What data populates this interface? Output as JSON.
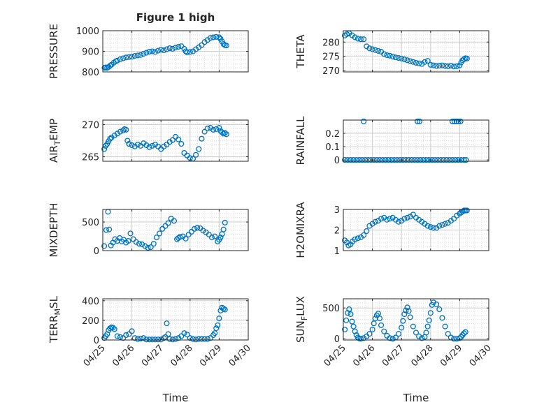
{
  "figure": {
    "title": "Figure 1 high",
    "x_axis_label": "Time",
    "x_tick_labels": [
      "04/25",
      "04/26",
      "04/27",
      "04/28",
      "04/29",
      "04/30"
    ]
  },
  "colors": {
    "marker": "#0072BD",
    "grid": "#dcdcdc",
    "axes": "#262626",
    "background": "#ffffff"
  },
  "chart_data": [
    {
      "type": "scatter",
      "ylabel": "PRESSURE",
      "yticks": [
        "800",
        "900",
        "1000"
      ],
      "ylim": [
        800,
        1000
      ],
      "xlim": [
        0,
        5
      ],
      "grid": true,
      "marker": "open-circle",
      "x": [
        0.06,
        0.1,
        0.15,
        0.2,
        0.25,
        0.3,
        0.38,
        0.45,
        0.5,
        0.6,
        0.7,
        0.8,
        0.9,
        1.0,
        1.1,
        1.2,
        1.3,
        1.4,
        1.5,
        1.6,
        1.7,
        1.8,
        1.9,
        2.0,
        2.1,
        2.2,
        2.3,
        2.4,
        2.5,
        2.6,
        2.7,
        2.8,
        2.85,
        2.9,
        3.0,
        3.1,
        3.2,
        3.3,
        3.4,
        3.5,
        3.6,
        3.7,
        3.8,
        3.9,
        4.0,
        4.05,
        4.1,
        4.15,
        4.2,
        4.25
      ],
      "y": [
        820,
        822,
        820,
        824,
        830,
        835,
        845,
        852,
        855,
        862,
        866,
        870,
        872,
        874,
        878,
        880,
        882,
        888,
        893,
        898,
        900,
        897,
        903,
        908,
        905,
        910,
        915,
        912,
        918,
        922,
        925,
        912,
        900,
        895,
        897,
        900,
        910,
        920,
        930,
        945,
        955,
        965,
        968,
        970,
        968,
        960,
        948,
        935,
        930,
        928
      ]
    },
    {
      "type": "scatter",
      "ylabel": "THETA",
      "yticks": [
        "270",
        "275",
        "280"
      ],
      "ylim": [
        269.5,
        284
      ],
      "xlim": [
        0,
        5
      ],
      "grid": true,
      "marker": "open-circle",
      "x": [
        0.05,
        0.12,
        0.2,
        0.3,
        0.4,
        0.5,
        0.6,
        0.7,
        0.8,
        0.9,
        1.0,
        1.1,
        1.2,
        1.3,
        1.4,
        1.5,
        1.6,
        1.7,
        1.8,
        1.9,
        2.0,
        2.1,
        2.2,
        2.3,
        2.4,
        2.5,
        2.6,
        2.7,
        2.8,
        2.9,
        3.0,
        3.1,
        3.2,
        3.3,
        3.4,
        3.5,
        3.6,
        3.7,
        3.8,
        3.9,
        4.0,
        4.05,
        4.1,
        4.15,
        4.2,
        4.25
      ],
      "y": [
        282.3,
        282.8,
        283.1,
        282.4,
        281.7,
        281.2,
        281.0,
        281.0,
        278.5,
        277.8,
        277.5,
        277.2,
        276.9,
        276.6,
        275.8,
        275.4,
        275.2,
        274.9,
        274.6,
        274.4,
        274.2,
        273.9,
        273.6,
        273.3,
        273.0,
        272.7,
        272.5,
        272.3,
        273.0,
        273.4,
        272.0,
        271.8,
        271.6,
        271.7,
        271.8,
        271.6,
        271.5,
        271.7,
        271.4,
        271.5,
        271.8,
        272.8,
        273.6,
        274.0,
        274.3,
        274.2
      ]
    },
    {
      "type": "scatter",
      "ylabel": "AIR_TEMP",
      "yticks": [
        "265",
        "270"
      ],
      "ylim": [
        264.3,
        270.7
      ],
      "xlim": [
        0,
        5
      ],
      "grid": true,
      "marker": "open-circle",
      "x": [
        0.05,
        0.1,
        0.15,
        0.2,
        0.25,
        0.3,
        0.4,
        0.5,
        0.6,
        0.7,
        0.75,
        0.8,
        0.85,
        0.9,
        1.0,
        1.1,
        1.2,
        1.3,
        1.4,
        1.5,
        1.6,
        1.7,
        1.8,
        1.9,
        2.0,
        2.1,
        2.2,
        2.3,
        2.4,
        2.5,
        2.6,
        2.7,
        2.8,
        2.9,
        3.0,
        3.1,
        3.2,
        3.3,
        3.4,
        3.5,
        3.6,
        3.7,
        3.8,
        3.9,
        4.0,
        4.05,
        4.1,
        4.15,
        4.2,
        4.25
      ],
      "y": [
        266.2,
        266.7,
        267.0,
        267.4,
        267.8,
        268.0,
        268.3,
        268.6,
        268.9,
        269.1,
        269.3,
        269.2,
        267.5,
        267.0,
        266.8,
        266.6,
        266.9,
        266.7,
        267.1,
        266.8,
        266.5,
        266.7,
        266.9,
        266.6,
        266.2,
        266.6,
        266.9,
        267.3,
        267.6,
        268.1,
        267.7,
        267.0,
        265.6,
        265.2,
        264.8,
        264.7,
        265.3,
        266.2,
        267.8,
        268.9,
        269.4,
        269.5,
        269.2,
        269.3,
        269.5,
        269.0,
        268.8,
        268.6,
        268.7,
        268.5
      ]
    },
    {
      "type": "scatter",
      "ylabel": "RAINFALL",
      "yticks": [
        "0",
        "0.1",
        "0.2"
      ],
      "ylim": [
        -0.01,
        0.3
      ],
      "xlim": [
        0,
        5
      ],
      "grid": true,
      "marker": "open-circle",
      "x": [
        0.05,
        0.15,
        0.25,
        0.35,
        0.45,
        0.55,
        0.65,
        0.75,
        0.85,
        0.95,
        1.05,
        1.15,
        1.25,
        1.35,
        1.45,
        1.55,
        1.65,
        1.75,
        1.85,
        1.95,
        2.05,
        2.15,
        2.25,
        2.35,
        2.45,
        2.55,
        2.65,
        2.75,
        2.85,
        2.95,
        3.05,
        3.15,
        3.25,
        3.35,
        3.45,
        3.55,
        3.65,
        3.75,
        3.85,
        3.95,
        4.05,
        4.15,
        4.22,
        0.7,
        2.55,
        2.62,
        3.75,
        3.82,
        3.89,
        3.96,
        4.03
      ],
      "y": [
        0,
        0,
        0,
        0,
        0,
        0,
        0,
        0,
        0,
        0,
        0,
        0,
        0,
        0,
        0,
        0,
        0,
        0,
        0,
        0,
        0,
        0,
        0,
        0,
        0,
        0,
        0,
        0,
        0,
        0,
        0,
        0,
        0,
        0,
        0,
        0,
        0,
        0,
        0,
        0,
        0,
        0,
        0,
        0.29,
        0.29,
        0.29,
        0.29,
        0.29,
        0.29,
        0.29,
        0.29
      ]
    },
    {
      "type": "scatter",
      "ylabel": "MIXDEPTH",
      "yticks": [
        "0",
        "500"
      ],
      "ylim": [
        0,
        720
      ],
      "xlim": [
        0,
        5
      ],
      "grid": true,
      "marker": "open-circle",
      "x": [
        0.05,
        0.12,
        0.18,
        0.22,
        0.28,
        0.35,
        0.42,
        0.5,
        0.58,
        0.65,
        0.72,
        0.8,
        0.88,
        0.95,
        1.05,
        1.15,
        1.25,
        1.35,
        1.45,
        1.55,
        1.65,
        1.75,
        1.85,
        1.95,
        2.05,
        2.15,
        2.25,
        2.35,
        2.45,
        2.55,
        2.6,
        2.65,
        2.75,
        2.85,
        2.95,
        3.05,
        3.15,
        3.25,
        3.35,
        3.45,
        3.55,
        3.65,
        3.75,
        3.85,
        3.95,
        4.0,
        4.05,
        4.1,
        4.15,
        4.2
      ],
      "y": [
        80,
        360,
        680,
        370,
        90,
        140,
        200,
        170,
        220,
        160,
        190,
        140,
        170,
        300,
        200,
        150,
        120,
        110,
        80,
        50,
        60,
        120,
        230,
        300,
        380,
        430,
        480,
        560,
        520,
        200,
        220,
        240,
        250,
        210,
        280,
        330,
        380,
        400,
        390,
        350,
        320,
        280,
        230,
        250,
        160,
        190,
        230,
        290,
        370,
        490
      ]
    },
    {
      "type": "scatter",
      "ylabel": "H2OMIXRA",
      "yticks": [
        "1",
        "2",
        "3"
      ],
      "ylim": [
        1,
        3
      ],
      "xlim": [
        0,
        5
      ],
      "grid": true,
      "marker": "open-circle",
      "x": [
        0.05,
        0.12,
        0.18,
        0.25,
        0.32,
        0.4,
        0.5,
        0.6,
        0.7,
        0.8,
        0.9,
        1.0,
        1.1,
        1.2,
        1.3,
        1.4,
        1.5,
        1.6,
        1.7,
        1.8,
        1.9,
        2.0,
        2.1,
        2.2,
        2.3,
        2.4,
        2.5,
        2.6,
        2.7,
        2.8,
        2.9,
        3.0,
        3.1,
        3.2,
        3.3,
        3.4,
        3.5,
        3.6,
        3.7,
        3.8,
        3.9,
        4.0,
        4.05,
        4.1,
        4.15,
        4.2,
        4.25
      ],
      "y": [
        1.5,
        1.4,
        1.25,
        1.3,
        1.45,
        1.55,
        1.6,
        1.65,
        1.75,
        1.95,
        2.2,
        2.3,
        2.4,
        2.45,
        2.55,
        2.6,
        2.5,
        2.55,
        2.6,
        2.5,
        2.4,
        2.45,
        2.55,
        2.6,
        2.65,
        2.75,
        2.6,
        2.5,
        2.4,
        2.3,
        2.2,
        2.15,
        2.1,
        2.1,
        2.2,
        2.25,
        2.3,
        2.35,
        2.45,
        2.55,
        2.7,
        2.8,
        2.85,
        2.9,
        2.95,
        2.95,
        2.95
      ]
    },
    {
      "type": "scatter",
      "ylabel": "TERR_MSL",
      "yticks": [
        "0",
        "200",
        "400"
      ],
      "ylim": [
        0,
        420
      ],
      "xlim": [
        0,
        5
      ],
      "grid": true,
      "marker": "open-circle",
      "x": [
        0.05,
        0.1,
        0.15,
        0.2,
        0.25,
        0.3,
        0.35,
        0.4,
        0.5,
        0.6,
        0.7,
        0.8,
        0.9,
        1.0,
        1.1,
        1.2,
        1.3,
        1.4,
        1.5,
        1.6,
        1.7,
        1.8,
        1.9,
        2.0,
        2.1,
        2.15,
        2.2,
        2.25,
        2.3,
        2.4,
        2.5,
        2.6,
        2.7,
        2.8,
        2.9,
        3.0,
        3.1,
        3.2,
        3.3,
        3.4,
        3.5,
        3.6,
        3.7,
        3.8,
        3.85,
        3.9,
        3.95,
        4.0,
        4.05,
        4.1,
        4.15,
        4.2
      ],
      "y": [
        20,
        40,
        60,
        100,
        120,
        130,
        125,
        110,
        40,
        30,
        20,
        50,
        60,
        90,
        20,
        10,
        15,
        20,
        5,
        5,
        5,
        5,
        5,
        5,
        20,
        30,
        170,
        60,
        10,
        5,
        10,
        20,
        40,
        70,
        55,
        20,
        10,
        5,
        10,
        10,
        10,
        10,
        20,
        50,
        70,
        120,
        150,
        220,
        300,
        330,
        320,
        310
      ]
    },
    {
      "type": "scatter",
      "ylabel": "SUN_FLUX",
      "yticks": [
        "0",
        "500"
      ],
      "ylim": [
        -20,
        650
      ],
      "xlim": [
        0,
        5
      ],
      "grid": true,
      "marker": "open-circle",
      "x": [
        0.05,
        0.1,
        0.15,
        0.2,
        0.25,
        0.3,
        0.35,
        0.4,
        0.45,
        0.5,
        0.55,
        0.6,
        0.7,
        0.8,
        0.9,
        1.0,
        1.05,
        1.1,
        1.15,
        1.2,
        1.25,
        1.3,
        1.4,
        1.5,
        1.6,
        1.7,
        1.8,
        1.9,
        2.0,
        2.05,
        2.1,
        2.15,
        2.2,
        2.25,
        2.3,
        2.4,
        2.5,
        2.6,
        2.7,
        2.8,
        2.85,
        2.9,
        2.95,
        3.0,
        3.05,
        3.1,
        3.2,
        3.3,
        3.4,
        3.5,
        3.6,
        3.7,
        3.8,
        3.9,
        4.0,
        4.05,
        4.1,
        4.15,
        4.2
      ],
      "y": [
        150,
        300,
        420,
        480,
        400,
        280,
        200,
        120,
        60,
        20,
        5,
        0,
        10,
        40,
        80,
        150,
        250,
        330,
        380,
        410,
        330,
        220,
        120,
        50,
        10,
        0,
        20,
        80,
        180,
        290,
        400,
        460,
        510,
        450,
        350,
        200,
        100,
        40,
        10,
        30,
        100,
        200,
        300,
        420,
        550,
        590,
        560,
        480,
        340,
        200,
        80,
        20,
        0,
        0,
        10,
        30,
        60,
        90,
        110
      ]
    }
  ]
}
